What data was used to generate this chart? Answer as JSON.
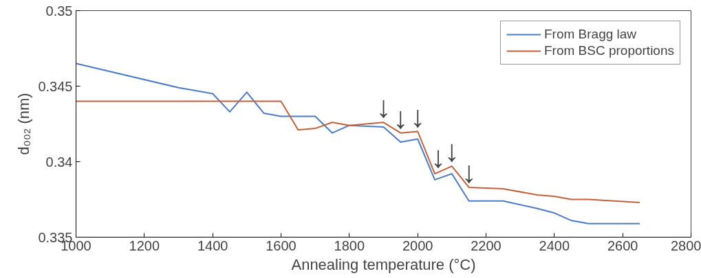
{
  "chart_data": {
    "type": "line",
    "xlabel": "Annealing temperature (°C)",
    "ylabel": "d₀₀₂ (nm)",
    "xlim": [
      1000,
      2800
    ],
    "ylim": [
      0.335,
      0.35
    ],
    "xticks": [
      1000,
      1200,
      1400,
      1600,
      1800,
      2000,
      2200,
      2400,
      2600,
      2800
    ],
    "yticks": [
      0.335,
      0.34,
      0.345,
      0.35
    ],
    "grid": false,
    "legend": "top right",
    "line_style": "solid",
    "marker": "none",
    "series": [
      {
        "name": "From Bragg law",
        "color": "#4a7bc8",
        "x": [
          1000,
          1300,
          1350,
          1400,
          1450,
          1500,
          1550,
          1600,
          1700,
          1750,
          1800,
          1900,
          1950,
          2000,
          2050,
          2100,
          2150,
          2250,
          2350,
          2400,
          2450,
          2500,
          2650
        ],
        "values": [
          0.3465,
          0.3449,
          0.3447,
          0.3445,
          0.3433,
          0.3446,
          0.3432,
          0.343,
          0.343,
          0.3419,
          0.3424,
          0.3423,
          0.3413,
          0.3415,
          0.3388,
          0.3392,
          0.3374,
          0.3374,
          0.3369,
          0.3366,
          0.3361,
          0.3359,
          0.3359
        ]
      },
      {
        "name": "From BSC proportions",
        "color": "#c4603a",
        "x": [
          1000,
          1600,
          1650,
          1700,
          1750,
          1800,
          1900,
          1950,
          2000,
          2050,
          2100,
          2150,
          2250,
          2350,
          2400,
          2450,
          2500,
          2650
        ],
        "values": [
          0.344,
          0.344,
          0.3421,
          0.3422,
          0.3426,
          0.3424,
          0.3426,
          0.3419,
          0.342,
          0.3392,
          0.3397,
          0.3383,
          0.3382,
          0.3378,
          0.3377,
          0.3375,
          0.3375,
          0.3373
        ]
      }
    ],
    "annotations": [
      {
        "text": "↓",
        "x": 1900,
        "y": 0.3426
      },
      {
        "text": "↓",
        "x": 1950,
        "y": 0.3419
      },
      {
        "text": "↓",
        "x": 2000,
        "y": 0.342
      },
      {
        "text": "↓",
        "x": 2060,
        "y": 0.3393
      },
      {
        "text": "↓",
        "x": 2100,
        "y": 0.3397
      },
      {
        "text": "↓",
        "x": 2150,
        "y": 0.3383
      }
    ]
  }
}
